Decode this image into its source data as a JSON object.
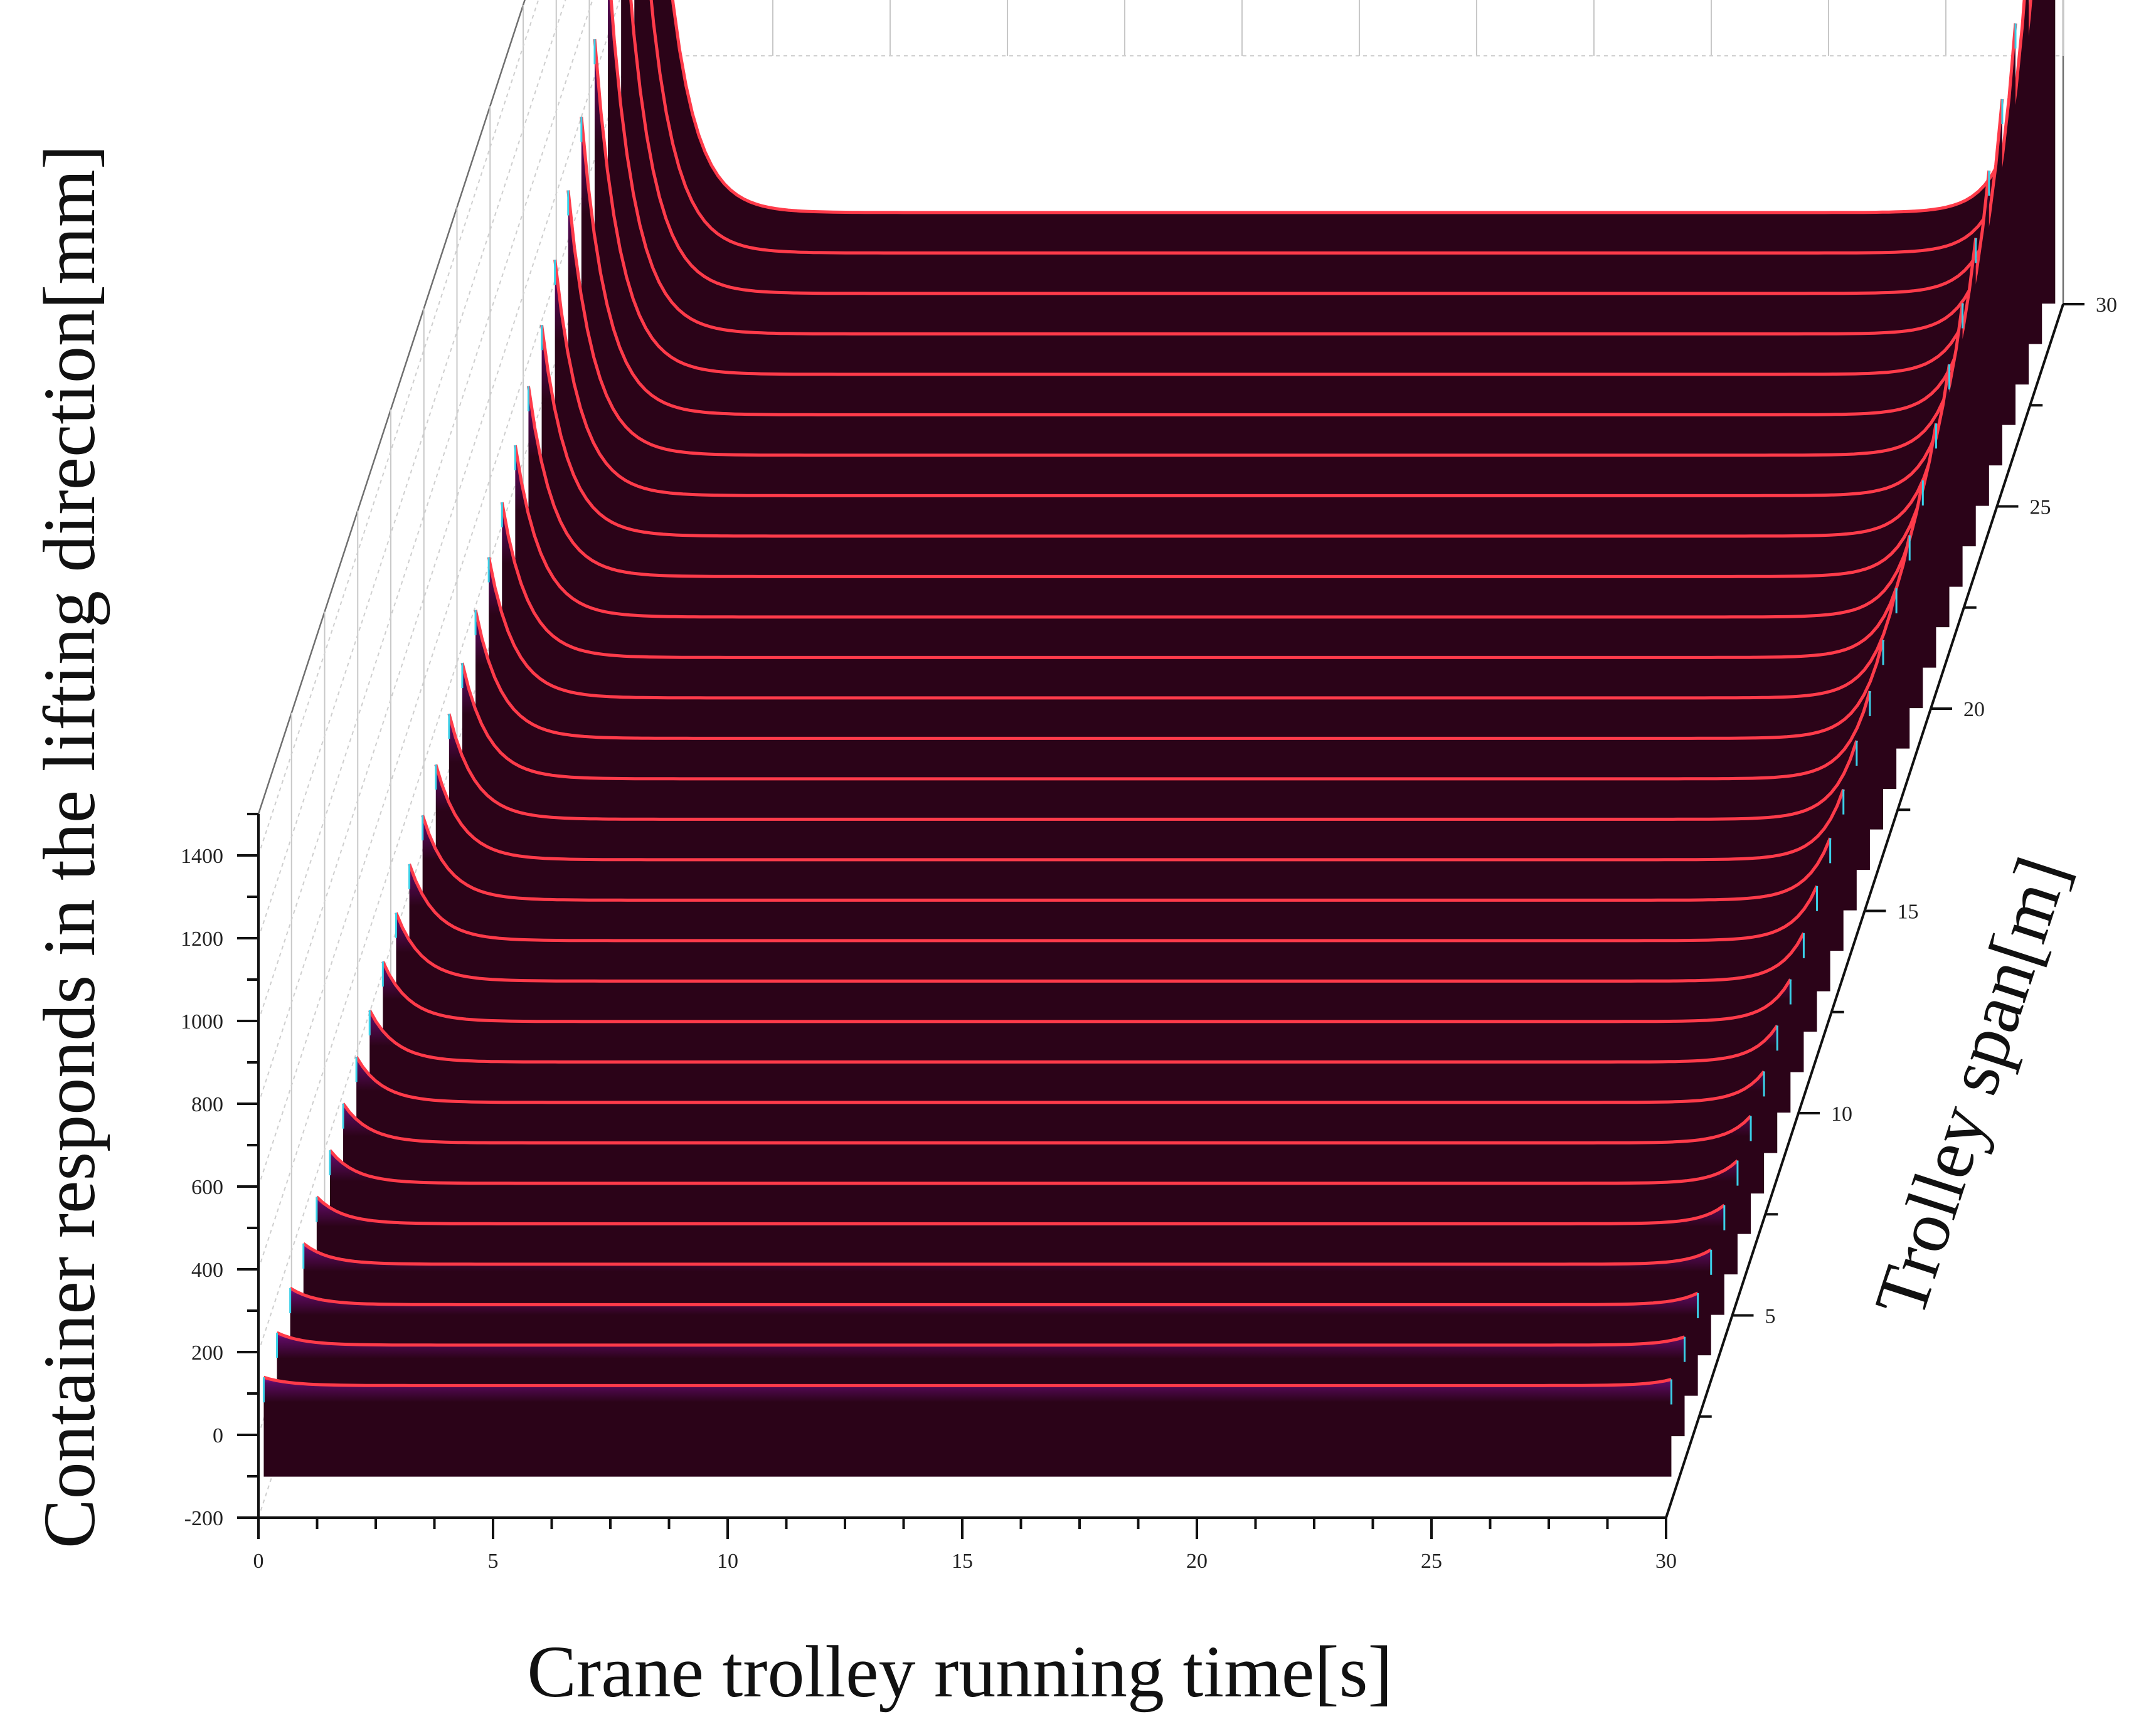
{
  "chart_data": {
    "type": "area",
    "projection": "3d-waterfall",
    "title": "",
    "xlabel": "Crane trolley running time[s]",
    "ylabel": "Trolley span[m]",
    "zlabel": "Container responds in the lifting direction[mm]",
    "x_range": [
      0,
      30
    ],
    "y_range": [
      0,
      30
    ],
    "z_range": [
      -200,
      1500
    ],
    "x_ticks": [
      0,
      5,
      10,
      15,
      20,
      25,
      30
    ],
    "y_ticks": [
      5,
      10,
      15,
      20,
      25,
      30
    ],
    "z_ticks": [
      -200,
      0,
      200,
      400,
      600,
      800,
      1000,
      1200,
      1400
    ],
    "grid": true,
    "series_spans_m": [
      0.4,
      1.4,
      2.4,
      3.4,
      4.4,
      5.4,
      6.4,
      7.4,
      8.4,
      9.4,
      10.4,
      11.4,
      12.4,
      13.4,
      14.4,
      15.4,
      16.4,
      17.4,
      18.4,
      19.4,
      20.4,
      21.4,
      22.4,
      23.4,
      24.4,
      25.4,
      26.4,
      27.4,
      28.4,
      29.4
    ],
    "baseline_mm": 80,
    "start_peak_mm": [
      100,
      110,
      120,
      130,
      145,
      160,
      175,
      190,
      205,
      225,
      245,
      265,
      285,
      310,
      335,
      360,
      390,
      420,
      455,
      495,
      540,
      590,
      650,
      720,
      800,
      890,
      990,
      1110,
      1250,
      1440
    ],
    "end_peak_mm": [
      95,
      100,
      108,
      115,
      125,
      135,
      145,
      155,
      168,
      182,
      196,
      212,
      230,
      250,
      270,
      292,
      318,
      345,
      375,
      410,
      450,
      495,
      545,
      605,
      670,
      745,
      830,
      930,
      1060,
      1420
    ],
    "colors": {
      "fill": "#2b0318",
      "fill_top": "#7a0a8c",
      "line": "#ff3b4a",
      "peak_accent": "#3ad0e8"
    }
  }
}
